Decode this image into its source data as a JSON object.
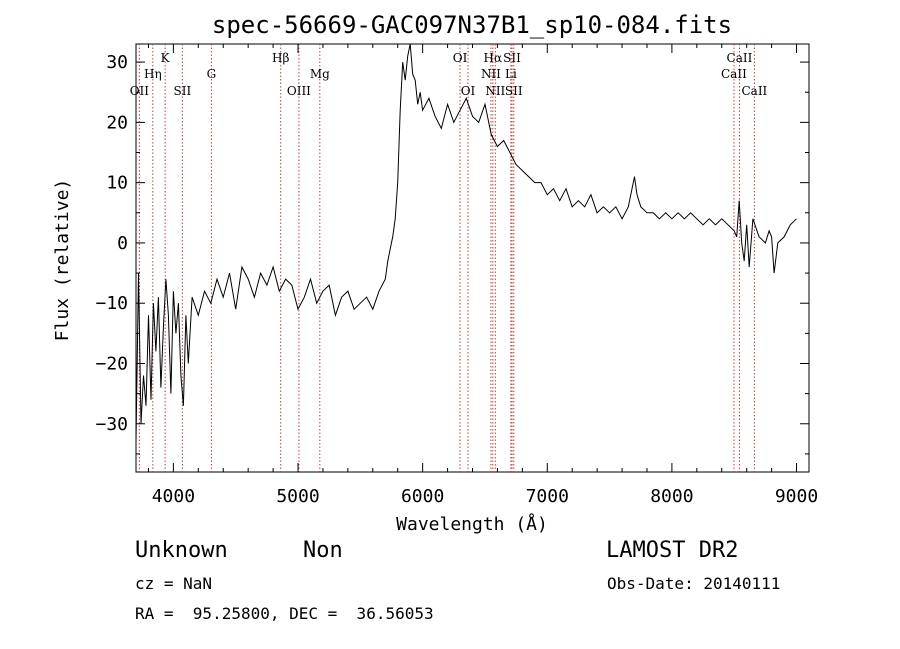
{
  "chart_data": {
    "type": "line",
    "title": "spec-56669-GAC097N37B1_sp10-084.fits",
    "xlabel": "Wavelength (Å)",
    "ylabel": "Flux (relative)",
    "xlim": [
      3700,
      9100
    ],
    "ylim": [
      -38,
      33
    ],
    "xticks": [
      4000,
      5000,
      6000,
      7000,
      8000,
      9000
    ],
    "yticks": [
      -30,
      -20,
      -10,
      0,
      10,
      20,
      30
    ],
    "xtick_labels": [
      "4000",
      "5000",
      "6000",
      "7000",
      "8000",
      "9000"
    ],
    "ytick_labels": [
      "−30",
      "−20",
      "−10",
      "0",
      "10",
      "20",
      "30"
    ],
    "grid": false,
    "line_color": "#000000",
    "marker_color": "#c04040",
    "series": [
      {
        "x": [
          3700,
          3720,
          3740,
          3760,
          3780,
          3800,
          3820,
          3840,
          3860,
          3880,
          3900,
          3920,
          3940,
          3960,
          3980,
          4000,
          4020,
          4040,
          4060,
          4080,
          4100,
          4120,
          4150,
          4200,
          4250,
          4300,
          4350,
          4400,
          4450,
          4500,
          4550,
          4600,
          4650,
          4700,
          4750,
          4800,
          4850,
          4900,
          4950,
          5000,
          5050,
          5100,
          5150,
          5200,
          5250,
          5300,
          5350,
          5400,
          5450,
          5500,
          5550,
          5600,
          5650,
          5700,
          5720,
          5740,
          5760,
          5780,
          5800,
          5820,
          5840,
          5860,
          5880,
          5900,
          5920,
          5940,
          5960,
          5980,
          6000,
          6050,
          6100,
          6150,
          6200,
          6250,
          6300,
          6350,
          6400,
          6450,
          6500,
          6550,
          6600,
          6650,
          6700,
          6750,
          6800,
          6850,
          6900,
          6950,
          7000,
          7050,
          7100,
          7150,
          7200,
          7250,
          7300,
          7350,
          7400,
          7450,
          7500,
          7550,
          7600,
          7650,
          7700,
          7720,
          7750,
          7800,
          7850,
          7900,
          7950,
          8000,
          8050,
          8100,
          8150,
          8200,
          8250,
          8300,
          8350,
          8400,
          8450,
          8500,
          8520,
          8540,
          8560,
          8580,
          8600,
          8620,
          8650,
          8700,
          8750,
          8780,
          8800,
          8820,
          8850,
          8900,
          8950,
          9000
        ],
        "y": [
          -33,
          -5,
          -30,
          -22,
          -27,
          -12,
          -26,
          -10,
          -18,
          -9,
          -24,
          -14,
          -6,
          -12,
          -25,
          -8,
          -15,
          -10,
          -22,
          -27,
          -12,
          -20,
          -9,
          -12,
          -8,
          -10,
          -6,
          -9,
          -5,
          -11,
          -4,
          -6,
          -9,
          -5,
          -7,
          -4,
          -8,
          -6,
          -7,
          -11,
          -9,
          -6,
          -10,
          -8,
          -7,
          -12,
          -9,
          -8,
          -11,
          -10,
          -9,
          -11,
          -8,
          -6,
          -3,
          -1,
          1,
          4,
          10,
          22,
          30,
          27,
          31,
          33,
          28,
          27,
          23,
          25,
          22,
          24,
          21,
          19,
          23,
          20,
          22,
          24,
          21,
          20,
          23,
          18,
          16,
          17,
          15,
          13,
          12,
          11,
          10,
          10,
          8,
          9,
          7,
          9,
          6,
          7,
          6,
          8,
          5,
          6,
          5,
          6,
          4,
          6,
          11,
          8,
          6,
          5,
          5,
          4,
          5,
          4,
          5,
          4,
          5,
          4,
          3,
          4,
          3,
          4,
          3,
          2,
          1,
          7,
          0,
          -3,
          3,
          -4,
          4,
          1,
          0,
          2,
          1,
          -5,
          0,
          1,
          3,
          4
        ]
      }
    ],
    "lines": [
      {
        "label": "OII",
        "x": 3727,
        "row": 3
      },
      {
        "label": "Hη",
        "x": 3835,
        "row": 2
      },
      {
        "label": "K",
        "x": 3934,
        "row": 1
      },
      {
        "label": "SII",
        "x": 4072,
        "row": 3
      },
      {
        "label": "G",
        "x": 4305,
        "row": 2
      },
      {
        "label": "Hβ",
        "x": 4861,
        "row": 1
      },
      {
        "label": "OIII",
        "x": 5007,
        "row": 3
      },
      {
        "label": "Mg",
        "x": 5175,
        "row": 2
      },
      {
        "label": "OI",
        "x": 6300,
        "row": 1
      },
      {
        "label": "OI",
        "x": 6364,
        "row": 3
      },
      {
        "label": "Hα",
        "x": 6563,
        "row": 1
      },
      {
        "label": "NII",
        "x": 6548,
        "row": 2
      },
      {
        "label": "NII",
        "x": 6583,
        "row": 3
      },
      {
        "label": "SII",
        "x": 6717,
        "row": 1
      },
      {
        "label": "Li",
        "x": 6708,
        "row": 2
      },
      {
        "label": "SII",
        "x": 6731,
        "row": 3
      },
      {
        "label": "CaII",
        "x": 8542,
        "row": 1
      },
      {
        "label": "CaII",
        "x": 8498,
        "row": 2
      },
      {
        "label": "CaII",
        "x": 8662,
        "row": 3
      }
    ]
  },
  "info": {
    "class": "Unknown",
    "subclass": "Non",
    "survey": "LAMOST DR2",
    "cz": "cz = NaN",
    "obs_date": "Obs-Date: 20140111",
    "coords": "RA =  95.25800, DEC =  36.56053"
  }
}
